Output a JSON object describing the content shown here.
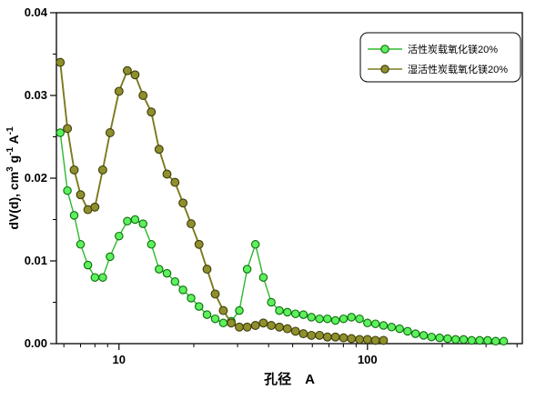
{
  "chart_data": {
    "type": "line",
    "title": "",
    "xlabel": "孔径　A",
    "ylabel": "dV(d), cm^3^ g^-1^ A^-1^",
    "xscale": "log",
    "xlim": [
      5.6,
      420
    ],
    "ylim": [
      0,
      0.04
    ],
    "x_major_ticks": [
      10,
      100
    ],
    "x_major_labels": [
      "10",
      "100"
    ],
    "x_minor_ticks": [
      6,
      7,
      8,
      9,
      20,
      30,
      40,
      50,
      60,
      70,
      80,
      90,
      200,
      300,
      400
    ],
    "y_major_ticks": [
      0,
      0.01,
      0.02,
      0.03,
      0.04
    ],
    "y_major_labels": [
      "0.00",
      "0.01",
      "0.02",
      "0.03",
      "0.04"
    ],
    "y_minor_ticks": [
      0.005,
      0.015,
      0.025,
      0.035
    ],
    "grid": false,
    "legend_position": "top-right",
    "frame_color": "#000000",
    "text_color": "#000000",
    "background_color": "#ffffff",
    "series": [
      {
        "name": "活性炭载氧化镁20%",
        "line_color": "#2db82d",
        "marker_fill": "#5ef05e",
        "marker_edge": "#0a6e0a",
        "x": [
          5.8,
          6.2,
          6.6,
          7.0,
          7.5,
          8.0,
          8.6,
          9.2,
          10.0,
          10.8,
          11.6,
          12.5,
          13.5,
          14.5,
          15.6,
          16.8,
          18.1,
          19.5,
          21.0,
          22.6,
          24.4,
          26.3,
          28.3,
          30.5,
          32.8,
          35.4,
          38.1,
          41.0,
          44.2,
          47.6,
          51.3,
          55.2,
          59.5,
          64.1,
          69.0,
          74.3,
          80.1,
          86.2,
          92.9,
          100.0,
          107.7,
          116.0,
          125.0,
          134.6,
          145.0,
          156.1,
          168.2,
          181.1,
          195.1,
          210.1,
          226.3,
          243.8,
          262.6,
          282.8,
          304.6,
          328.1,
          353.4
        ],
        "y": [
          0.0255,
          0.0185,
          0.0155,
          0.012,
          0.0095,
          0.008,
          0.008,
          0.0105,
          0.013,
          0.0148,
          0.015,
          0.0145,
          0.012,
          0.009,
          0.0085,
          0.0075,
          0.0065,
          0.0055,
          0.0045,
          0.0035,
          0.003,
          0.0025,
          0.0027,
          0.004,
          0.009,
          0.012,
          0.008,
          0.005,
          0.004,
          0.0038,
          0.0036,
          0.0035,
          0.0032,
          0.003,
          0.003,
          0.0028,
          0.003,
          0.0032,
          0.003,
          0.0025,
          0.0024,
          0.0022,
          0.002,
          0.0018,
          0.0015,
          0.0012,
          0.001,
          0.0008,
          0.0007,
          0.0006,
          0.0005,
          0.0005,
          0.0004,
          0.0004,
          0.0004,
          0.0003,
          0.0003
        ]
      },
      {
        "name": "湿活性炭载氧化镁20%",
        "line_color": "#7a7a1e",
        "marker_fill": "#8f8f2e",
        "marker_edge": "#3c3c08",
        "x": [
          5.8,
          6.2,
          6.6,
          7.0,
          7.5,
          8.0,
          8.6,
          9.2,
          10.0,
          10.8,
          11.6,
          12.5,
          13.5,
          14.5,
          15.6,
          16.8,
          18.1,
          19.5,
          21.0,
          22.6,
          24.4,
          26.3,
          28.3,
          30.5,
          32.8,
          35.4,
          38.1,
          41.0,
          44.2,
          47.6,
          51.3,
          55.2,
          59.5,
          64.1,
          69.0,
          74.3,
          80.1,
          86.2,
          92.9,
          100.0,
          107.7,
          116.0
        ],
        "y": [
          0.034,
          0.026,
          0.021,
          0.018,
          0.0162,
          0.0165,
          0.021,
          0.0255,
          0.0305,
          0.033,
          0.0325,
          0.03,
          0.028,
          0.0235,
          0.0205,
          0.0195,
          0.017,
          0.0145,
          0.012,
          0.009,
          0.006,
          0.004,
          0.0025,
          0.002,
          0.002,
          0.0022,
          0.0025,
          0.0022,
          0.002,
          0.0018,
          0.0015,
          0.0012,
          0.001,
          0.001,
          0.0008,
          0.0008,
          0.0007,
          0.0006,
          0.0005,
          0.0005,
          0.0004,
          0.0004
        ]
      }
    ]
  }
}
